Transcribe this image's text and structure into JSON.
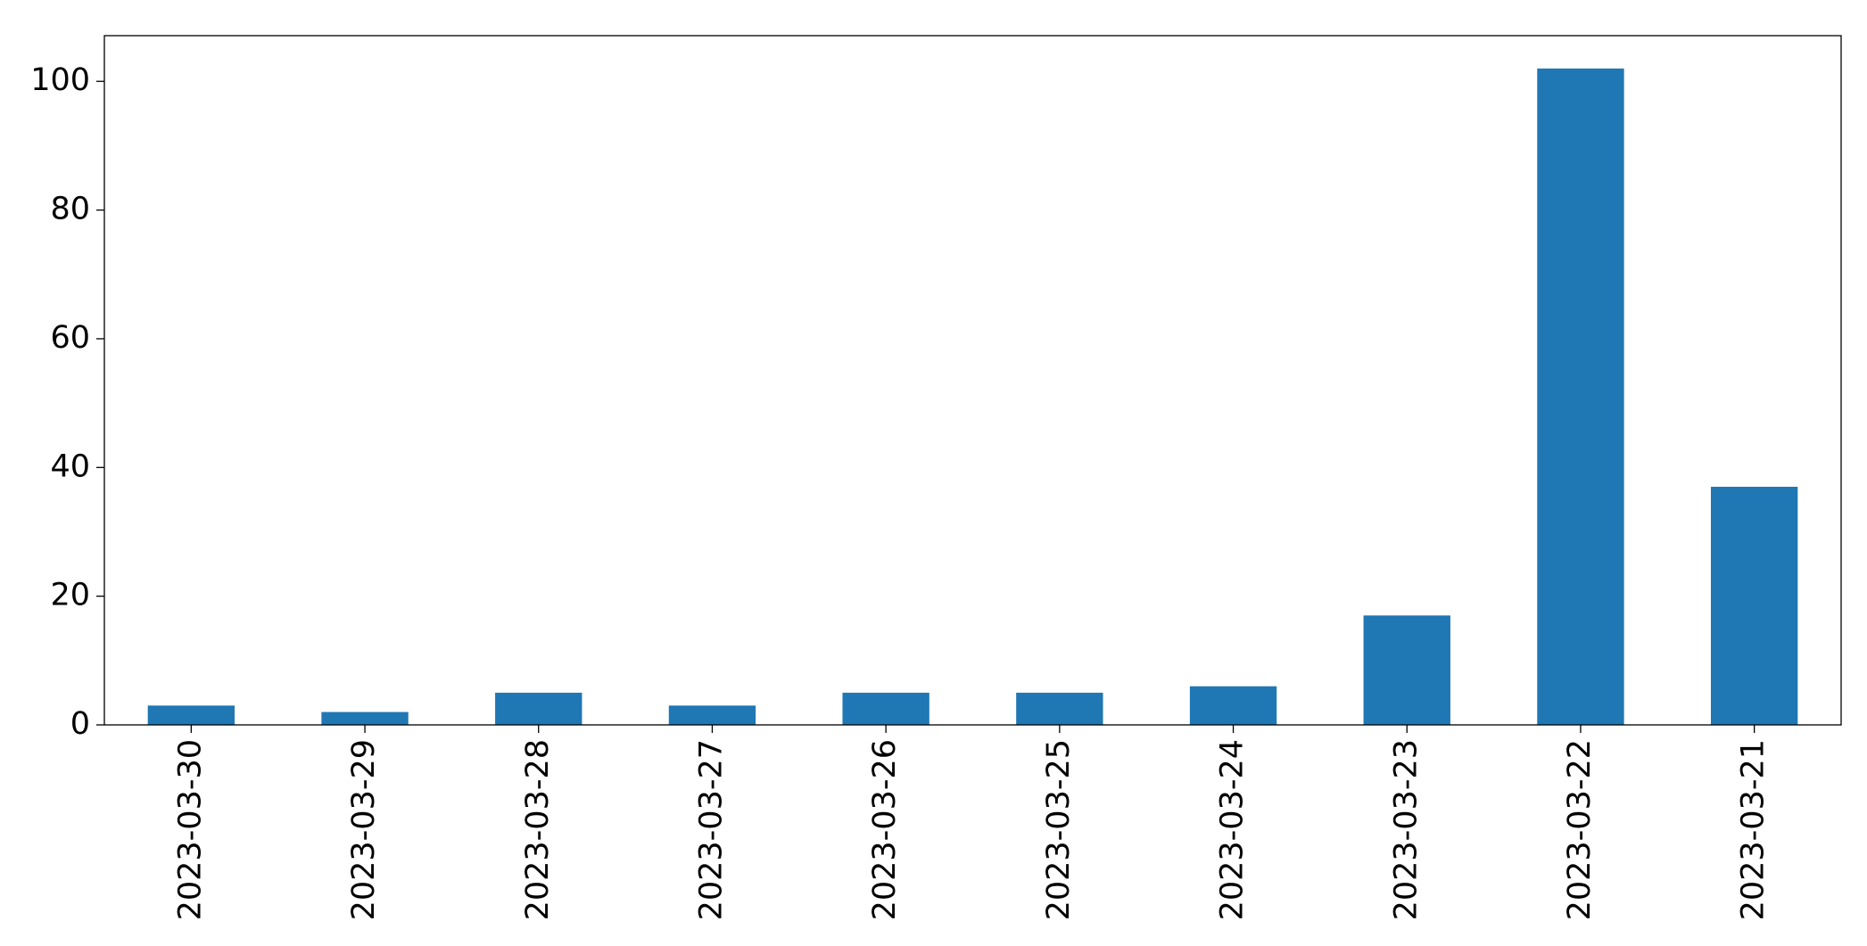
{
  "chart_data": {
    "type": "bar",
    "categories": [
      "2023-03-30",
      "2023-03-29",
      "2023-03-28",
      "2023-03-27",
      "2023-03-26",
      "2023-03-25",
      "2023-03-24",
      "2023-03-23",
      "2023-03-22",
      "2023-03-21"
    ],
    "values": [
      3,
      2,
      5,
      3,
      5,
      5,
      6,
      17,
      102,
      37
    ],
    "color": "#1f77b4",
    "ylim": [
      0,
      107.1
    ],
    "yticks": [
      0,
      20,
      40,
      60,
      80,
      100
    ],
    "grid": false
  }
}
